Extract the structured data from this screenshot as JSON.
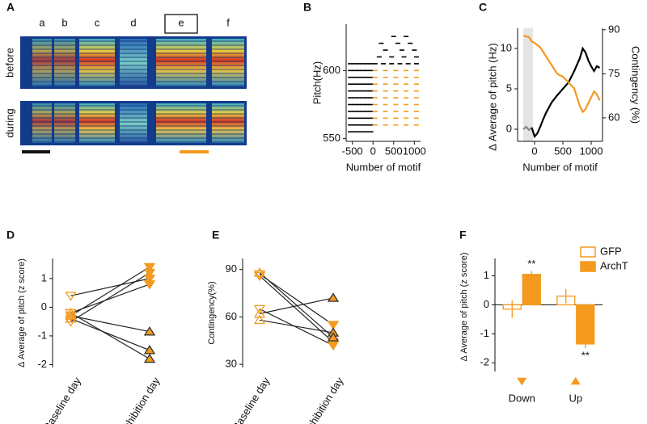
{
  "chart_data": [
    {
      "panel": "A",
      "type": "spectrogram",
      "syllables": [
        "a",
        "b",
        "c",
        "d",
        "e",
        "f"
      ],
      "rows": [
        "before",
        "during"
      ]
    },
    {
      "panel": "B",
      "type": "scatter",
      "xlabel": "Number of motif",
      "ylabel": "Pitch(Hz)",
      "xlim": [
        -650,
        1150
      ],
      "xticks": [
        -500,
        0,
        500,
        1000
      ],
      "ylim": [
        548,
        634
      ],
      "yticks": [
        550,
        600
      ],
      "series": [
        {
          "color": "#000000",
          "x": [
            -550,
            -450,
            -350,
            -250,
            -150,
            -50,
            -550,
            -450,
            -350,
            -250,
            -150,
            -50,
            -550,
            -450,
            -350,
            -250,
            -150,
            -50,
            -550,
            -450,
            -350,
            -250,
            -150,
            -50,
            -550,
            -450,
            -350,
            -250,
            -150,
            -50,
            -550,
            -450,
            -350,
            -250,
            -150,
            -50,
            -550,
            -450,
            -350,
            -250,
            -150,
            -50,
            -550,
            -450,
            -350,
            -250,
            -150,
            -50,
            -550,
            -450,
            -350,
            -250,
            -150,
            -50,
            -550,
            -450,
            -350,
            -250,
            -150,
            -50,
            -550,
            -450,
            -350,
            -250,
            -150,
            -50,
            50,
            250,
            450,
            650,
            850,
            1050,
            150,
            450,
            750,
            1050,
            300,
            700,
            1000,
            200,
            600,
            900,
            500,
            800
          ],
          "y": [
            555,
            555,
            555,
            555,
            555,
            555,
            560,
            560,
            560,
            560,
            560,
            560,
            565,
            565,
            565,
            565,
            565,
            565,
            570,
            570,
            570,
            570,
            570,
            570,
            575,
            575,
            575,
            575,
            575,
            575,
            580,
            580,
            580,
            580,
            580,
            580,
            585,
            585,
            585,
            585,
            585,
            585,
            590,
            590,
            590,
            590,
            590,
            590,
            595,
            595,
            595,
            595,
            595,
            595,
            600,
            600,
            600,
            600,
            600,
            600,
            605,
            605,
            605,
            605,
            605,
            605,
            605,
            605,
            605,
            605,
            605,
            605,
            610,
            610,
            610,
            610,
            615,
            615,
            615,
            620,
            620,
            620,
            625,
            625
          ]
        },
        {
          "color": "#f39a1f",
          "x": [
            50,
            300,
            550,
            800,
            1050,
            50,
            300,
            550,
            800,
            1050,
            50,
            300,
            550,
            800,
            1050,
            50,
            300,
            550,
            800,
            1050,
            50,
            300,
            550,
            800,
            1050,
            50,
            300,
            550,
            800,
            1050,
            50,
            300,
            550,
            800,
            1050,
            50,
            300,
            550,
            800,
            1050,
            50,
            300,
            550,
            800,
            1050
          ],
          "y": [
            560,
            560,
            560,
            560,
            560,
            565,
            565,
            565,
            565,
            565,
            570,
            570,
            570,
            570,
            570,
            575,
            575,
            575,
            575,
            575,
            580,
            580,
            580,
            580,
            580,
            585,
            585,
            585,
            585,
            585,
            590,
            590,
            590,
            590,
            590,
            595,
            595,
            595,
            595,
            595,
            600,
            600,
            600,
            600,
            600
          ]
        }
      ]
    },
    {
      "panel": "C",
      "type": "line",
      "xlabel": "Number of motif",
      "ylabel": "Δ Average of pitch (Hz)",
      "y2label": "Contingency (%)",
      "xlim": [
        -300,
        1200
      ],
      "xticks": [
        0,
        500,
        1000
      ],
      "ylim": [
        -1.5,
        12.5
      ],
      "yticks": [
        0,
        5,
        10
      ],
      "y2lim": [
        52,
        90.5
      ],
      "y2ticks": [
        60,
        75,
        90
      ],
      "highlight_x": [
        -200,
        -30
      ],
      "series": [
        {
          "color": "#888888",
          "x": [
            -200,
            -150,
            -100,
            -50
          ],
          "values": [
            0,
            0.3,
            -0.1,
            0.2
          ]
        },
        {
          "color": "#000000",
          "x": [
            -50,
            0,
            50,
            100,
            150,
            200,
            300,
            400,
            500,
            600,
            700,
            800,
            850,
            900,
            950,
            1000,
            1050,
            1100,
            1150
          ],
          "values": [
            0.2,
            -0.9,
            -0.5,
            0.3,
            1.2,
            2,
            3.3,
            4.2,
            5,
            5.8,
            7.2,
            8.8,
            10,
            9.5,
            8.5,
            7.8,
            7.2,
            7.8,
            7.6
          ]
        },
        {
          "color": "#f39a1f",
          "axis": "y2",
          "x": [
            -200,
            -100,
            -50,
            0,
            100,
            200,
            300,
            400,
            500,
            600,
            700,
            750,
            800,
            850,
            900,
            950,
            1000,
            1050,
            1100,
            1150
          ],
          "values": [
            88,
            87.5,
            86,
            85.5,
            84,
            81,
            78,
            75,
            74,
            72,
            70,
            67,
            64,
            62,
            63,
            65,
            67,
            69,
            68,
            66
          ]
        }
      ]
    },
    {
      "panel": "D",
      "type": "paired",
      "ylabel": "Δ Average of pitch (z score)",
      "categories": [
        "Baseline day",
        "Inhibition day"
      ],
      "ylim": [
        -2.1,
        1.7
      ],
      "yticks": [
        -2,
        -1,
        0,
        1
      ],
      "color": "#f39a1f",
      "series": [
        {
          "marker": "down",
          "values": [
            -0.3,
            1.4
          ]
        },
        {
          "marker": "down",
          "values": [
            -0.5,
            1.2
          ]
        },
        {
          "marker": "down",
          "values": [
            0.4,
            1.0
          ]
        },
        {
          "marker": "down",
          "values": [
            -0.2,
            0.8
          ]
        },
        {
          "marker": "up",
          "values": [
            -0.3,
            -0.85
          ]
        },
        {
          "marker": "up",
          "values": [
            -0.4,
            -1.5
          ]
        },
        {
          "marker": "up",
          "values": [
            -0.2,
            -1.8
          ]
        }
      ]
    },
    {
      "panel": "E",
      "type": "paired",
      "ylabel": "Contingency(%)",
      "categories": [
        "Baseline day",
        "Inhibition day"
      ],
      "ylim": [
        28,
        97
      ],
      "yticks": [
        30,
        60,
        90
      ],
      "color": "#f39a1f",
      "series": [
        {
          "marker": "down",
          "values": [
            87,
            55
          ]
        },
        {
          "marker": "down",
          "values": [
            86,
            44
          ]
        },
        {
          "marker": "down",
          "values": [
            65,
            42
          ]
        },
        {
          "marker": "up",
          "values": [
            62,
            72
          ]
        },
        {
          "marker": "up",
          "values": [
            58,
            50
          ]
        },
        {
          "marker": "up",
          "values": [
            88,
            47
          ]
        }
      ]
    },
    {
      "panel": "F",
      "type": "bar",
      "ylabel": "Δ Average of pitch (z score)",
      "categories": [
        "Down",
        "Up"
      ],
      "ylim": [
        -2.3,
        1.6
      ],
      "yticks": [
        -2,
        -1,
        0,
        1
      ],
      "legend": "upper right",
      "series": [
        {
          "name": "GFP",
          "color": "#f39a1f",
          "filled": false,
          "values": [
            -0.15,
            0.3
          ],
          "errors": [
            0.3,
            0.25
          ]
        },
        {
          "name": "ArchT",
          "color": "#f39a1f",
          "filled": true,
          "values": [
            1.05,
            -1.35
          ],
          "errors": [
            0.12,
            0.15
          ],
          "annotations": [
            "**",
            "**"
          ]
        }
      ]
    }
  ]
}
